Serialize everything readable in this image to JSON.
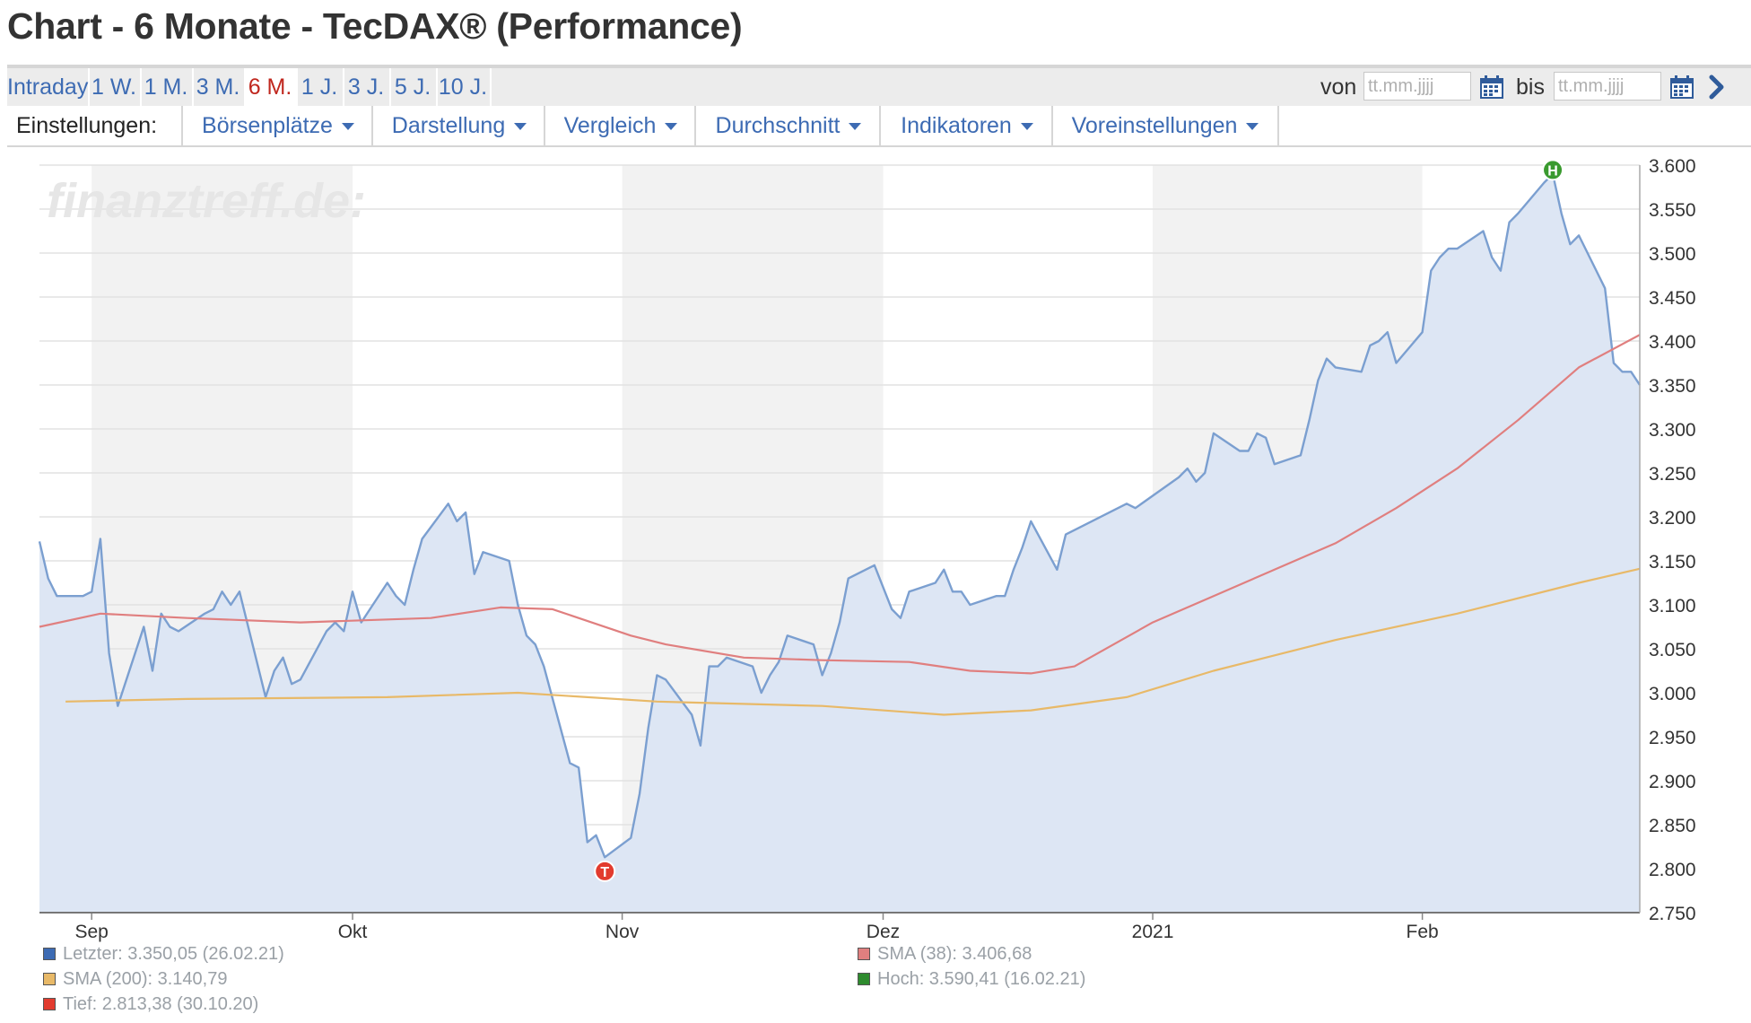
{
  "page": {
    "title": "Chart - 6 Monate - TecDAX® (Performance)"
  },
  "range_tabs": [
    {
      "label": "Intraday",
      "active": false
    },
    {
      "label": "1 W.",
      "active": false
    },
    {
      "label": "1 M.",
      "active": false
    },
    {
      "label": "3 M.",
      "active": false
    },
    {
      "label": "6 M.",
      "active": true
    },
    {
      "label": "1 J.",
      "active": false
    },
    {
      "label": "3 J.",
      "active": false
    },
    {
      "label": "5 J.",
      "active": false
    },
    {
      "label": "10 J.",
      "active": false
    }
  ],
  "date_range": {
    "from_label": "von",
    "from_placeholder": "tt.mm.jjjj",
    "to_label": "bis",
    "to_placeholder": "tt.mm.jjjj",
    "icons": [
      "calendar-icon",
      "chevron-right-icon"
    ]
  },
  "settings": {
    "label": "Einstellungen:",
    "menus": [
      "Börsenplätze",
      "Darstellung",
      "Vergleich",
      "Durchschnitt",
      "Indikatoren",
      "Voreinstellungen"
    ]
  },
  "watermark": "finanztreff.de:",
  "colors": {
    "accent": "#3d6bb3",
    "active_tab": "#c0271e",
    "price_line": "#7b9fd0",
    "price_fill": "#dde6f4",
    "sma38": "#e07f7f",
    "sma200": "#e8b968",
    "low_marker": "#e23b2e",
    "high_marker": "#3a9a2f"
  },
  "chart_data": {
    "type": "area",
    "ylim": [
      2750,
      3600
    ],
    "yticks": [
      "3.600",
      "3.550",
      "3.500",
      "3.450",
      "3.400",
      "3.350",
      "3.300",
      "3.250",
      "3.200",
      "3.150",
      "3.100",
      "3.050",
      "3.000",
      "2.950",
      "2.900",
      "2.850",
      "2.800",
      "2.750"
    ],
    "ytick_values": [
      3600,
      3550,
      3500,
      3450,
      3400,
      3350,
      3300,
      3250,
      3200,
      3150,
      3100,
      3050,
      3000,
      2950,
      2900,
      2850,
      2800,
      2750
    ],
    "xlim": [
      "2020-08-26",
      "2021-02-26"
    ],
    "xticks": [
      {
        "label": "Sep",
        "date": "2020-09-01"
      },
      {
        "label": "Okt",
        "date": "2020-10-01"
      },
      {
        "label": "Nov",
        "date": "2020-11-01"
      },
      {
        "label": "Dez",
        "date": "2020-12-01"
      },
      {
        "label": "2021",
        "date": "2021-01-01"
      },
      {
        "label": "Feb",
        "date": "2021-02-01"
      }
    ],
    "shaded_months": [
      [
        "2020-09-01",
        "2020-10-01"
      ],
      [
        "2020-11-01",
        "2020-12-01"
      ],
      [
        "2021-01-01",
        "2021-02-01"
      ]
    ],
    "series": [
      {
        "name": "Letzter",
        "style": "area",
        "points": [
          [
            "2020-08-26",
            3172
          ],
          [
            "2020-08-27",
            3130
          ],
          [
            "2020-08-28",
            3110
          ],
          [
            "2020-08-31",
            3110
          ],
          [
            "2020-09-01",
            3115
          ],
          [
            "2020-09-02",
            3175
          ],
          [
            "2020-09-03",
            3045
          ],
          [
            "2020-09-04",
            2985
          ],
          [
            "2020-09-07",
            3075
          ],
          [
            "2020-09-08",
            3025
          ],
          [
            "2020-09-09",
            3090
          ],
          [
            "2020-09-10",
            3075
          ],
          [
            "2020-09-11",
            3070
          ],
          [
            "2020-09-14",
            3090
          ],
          [
            "2020-09-15",
            3095
          ],
          [
            "2020-09-16",
            3115
          ],
          [
            "2020-09-17",
            3100
          ],
          [
            "2020-09-18",
            3115
          ],
          [
            "2020-09-21",
            2995
          ],
          [
            "2020-09-22",
            3025
          ],
          [
            "2020-09-23",
            3040
          ],
          [
            "2020-09-24",
            3010
          ],
          [
            "2020-09-25",
            3015
          ],
          [
            "2020-09-28",
            3070
          ],
          [
            "2020-09-29",
            3080
          ],
          [
            "2020-09-30",
            3070
          ],
          [
            "2020-10-01",
            3115
          ],
          [
            "2020-10-02",
            3080
          ],
          [
            "2020-10-05",
            3125
          ],
          [
            "2020-10-06",
            3110
          ],
          [
            "2020-10-07",
            3100
          ],
          [
            "2020-10-08",
            3140
          ],
          [
            "2020-10-09",
            3175
          ],
          [
            "2020-10-12",
            3215
          ],
          [
            "2020-10-13",
            3195
          ],
          [
            "2020-10-14",
            3205
          ],
          [
            "2020-10-15",
            3135
          ],
          [
            "2020-10-16",
            3160
          ],
          [
            "2020-10-19",
            3150
          ],
          [
            "2020-10-20",
            3100
          ],
          [
            "2020-10-21",
            3065
          ],
          [
            "2020-10-22",
            3055
          ],
          [
            "2020-10-23",
            3030
          ],
          [
            "2020-10-26",
            2920
          ],
          [
            "2020-10-27",
            2915
          ],
          [
            "2020-10-28",
            2830
          ],
          [
            "2020-10-29",
            2838
          ],
          [
            "2020-10-30",
            2813
          ],
          [
            "2020-11-02",
            2835
          ],
          [
            "2020-11-03",
            2885
          ],
          [
            "2020-11-04",
            2960
          ],
          [
            "2020-11-05",
            3020
          ],
          [
            "2020-11-06",
            3015
          ],
          [
            "2020-11-09",
            2975
          ],
          [
            "2020-11-10",
            2940
          ],
          [
            "2020-11-11",
            3030
          ],
          [
            "2020-11-12",
            3030
          ],
          [
            "2020-11-13",
            3040
          ],
          [
            "2020-11-16",
            3030
          ],
          [
            "2020-11-17",
            3000
          ],
          [
            "2020-11-18",
            3020
          ],
          [
            "2020-11-19",
            3035
          ],
          [
            "2020-11-20",
            3065
          ],
          [
            "2020-11-23",
            3055
          ],
          [
            "2020-11-24",
            3020
          ],
          [
            "2020-11-25",
            3045
          ],
          [
            "2020-11-26",
            3080
          ],
          [
            "2020-11-27",
            3130
          ],
          [
            "2020-11-30",
            3145
          ],
          [
            "2020-12-01",
            3120
          ],
          [
            "2020-12-02",
            3095
          ],
          [
            "2020-12-03",
            3085
          ],
          [
            "2020-12-04",
            3115
          ],
          [
            "2020-12-07",
            3125
          ],
          [
            "2020-12-08",
            3140
          ],
          [
            "2020-12-09",
            3115
          ],
          [
            "2020-12-10",
            3115
          ],
          [
            "2020-12-11",
            3100
          ],
          [
            "2020-12-14",
            3110
          ],
          [
            "2020-12-15",
            3110
          ],
          [
            "2020-12-16",
            3140
          ],
          [
            "2020-12-17",
            3165
          ],
          [
            "2020-12-18",
            3195
          ],
          [
            "2020-12-21",
            3140
          ],
          [
            "2020-12-22",
            3180
          ],
          [
            "2020-12-23",
            3185
          ],
          [
            "2020-12-28",
            3210
          ],
          [
            "2020-12-29",
            3215
          ],
          [
            "2020-12-30",
            3210
          ],
          [
            "2021-01-04",
            3245
          ],
          [
            "2021-01-05",
            3255
          ],
          [
            "2021-01-06",
            3240
          ],
          [
            "2021-01-07",
            3250
          ],
          [
            "2021-01-08",
            3295
          ],
          [
            "2021-01-11",
            3275
          ],
          [
            "2021-01-12",
            3275
          ],
          [
            "2021-01-13",
            3295
          ],
          [
            "2021-01-14",
            3290
          ],
          [
            "2021-01-15",
            3260
          ],
          [
            "2021-01-18",
            3270
          ],
          [
            "2021-01-19",
            3310
          ],
          [
            "2021-01-20",
            3355
          ],
          [
            "2021-01-21",
            3380
          ],
          [
            "2021-01-22",
            3370
          ],
          [
            "2021-01-25",
            3365
          ],
          [
            "2021-01-26",
            3395
          ],
          [
            "2021-01-27",
            3400
          ],
          [
            "2021-01-28",
            3410
          ],
          [
            "2021-01-29",
            3375
          ],
          [
            "2021-02-01",
            3410
          ],
          [
            "2021-02-02",
            3480
          ],
          [
            "2021-02-03",
            3495
          ],
          [
            "2021-02-04",
            3505
          ],
          [
            "2021-02-05",
            3505
          ],
          [
            "2021-02-08",
            3525
          ],
          [
            "2021-02-09",
            3495
          ],
          [
            "2021-02-10",
            3480
          ],
          [
            "2021-02-11",
            3535
          ],
          [
            "2021-02-12",
            3545
          ],
          [
            "2021-02-15",
            3580
          ],
          [
            "2021-02-16",
            3590
          ],
          [
            "2021-02-17",
            3545
          ],
          [
            "2021-02-18",
            3510
          ],
          [
            "2021-02-19",
            3520
          ],
          [
            "2021-02-22",
            3460
          ],
          [
            "2021-02-23",
            3375
          ],
          [
            "2021-02-24",
            3365
          ],
          [
            "2021-02-25",
            3365
          ],
          [
            "2021-02-26",
            3350
          ]
        ]
      },
      {
        "name": "SMA (38)",
        "style": "line",
        "points": [
          [
            "2020-08-26",
            3075
          ],
          [
            "2020-09-02",
            3090
          ],
          [
            "2020-09-12",
            3085
          ],
          [
            "2020-09-25",
            3080
          ],
          [
            "2020-10-10",
            3085
          ],
          [
            "2020-10-18",
            3097
          ],
          [
            "2020-10-24",
            3095
          ],
          [
            "2020-11-02",
            3065
          ],
          [
            "2020-11-06",
            3055
          ],
          [
            "2020-11-15",
            3040
          ],
          [
            "2020-11-24",
            3037
          ],
          [
            "2020-12-04",
            3035
          ],
          [
            "2020-12-11",
            3025
          ],
          [
            "2020-12-18",
            3022
          ],
          [
            "2020-12-23",
            3030
          ],
          [
            "2021-01-01",
            3080
          ],
          [
            "2021-01-08",
            3110
          ],
          [
            "2021-01-15",
            3140
          ],
          [
            "2021-01-22",
            3170
          ],
          [
            "2021-01-29",
            3210
          ],
          [
            "2021-02-05",
            3255
          ],
          [
            "2021-02-12",
            3310
          ],
          [
            "2021-02-19",
            3370
          ],
          [
            "2021-02-26",
            3407
          ]
        ]
      },
      {
        "name": "SMA (200)",
        "style": "line",
        "points": [
          [
            "2020-08-29",
            2990
          ],
          [
            "2020-09-12",
            2993
          ],
          [
            "2020-10-05",
            2995
          ],
          [
            "2020-10-20",
            3000
          ],
          [
            "2020-11-05",
            2990
          ],
          [
            "2020-11-24",
            2985
          ],
          [
            "2020-12-08",
            2975
          ],
          [
            "2020-12-18",
            2980
          ],
          [
            "2020-12-29",
            2995
          ],
          [
            "2021-01-08",
            3025
          ],
          [
            "2021-01-22",
            3060
          ],
          [
            "2021-02-05",
            3090
          ],
          [
            "2021-02-19",
            3125
          ],
          [
            "2021-02-26",
            3141
          ]
        ]
      }
    ],
    "markers": [
      {
        "label": "T",
        "date": "2020-10-30",
        "value": 2813.38
      },
      {
        "label": "H",
        "date": "2021-02-16",
        "value": 3590.41
      }
    ],
    "legend": [
      {
        "text": "Letzter: 3.350,05 (26.02.21)",
        "color": "#3d6bb3"
      },
      {
        "text": "SMA (38): 3.406,68",
        "color": "#e07f7f"
      },
      {
        "text": "SMA (200): 3.140,79",
        "color": "#e8b968"
      },
      {
        "text": "Hoch: 3.590,41 (16.02.21)",
        "color": "#2e8b2e"
      },
      {
        "text": "Tief: 2.813,38 (30.10.20)",
        "color": "#e23b2e"
      }
    ]
  }
}
